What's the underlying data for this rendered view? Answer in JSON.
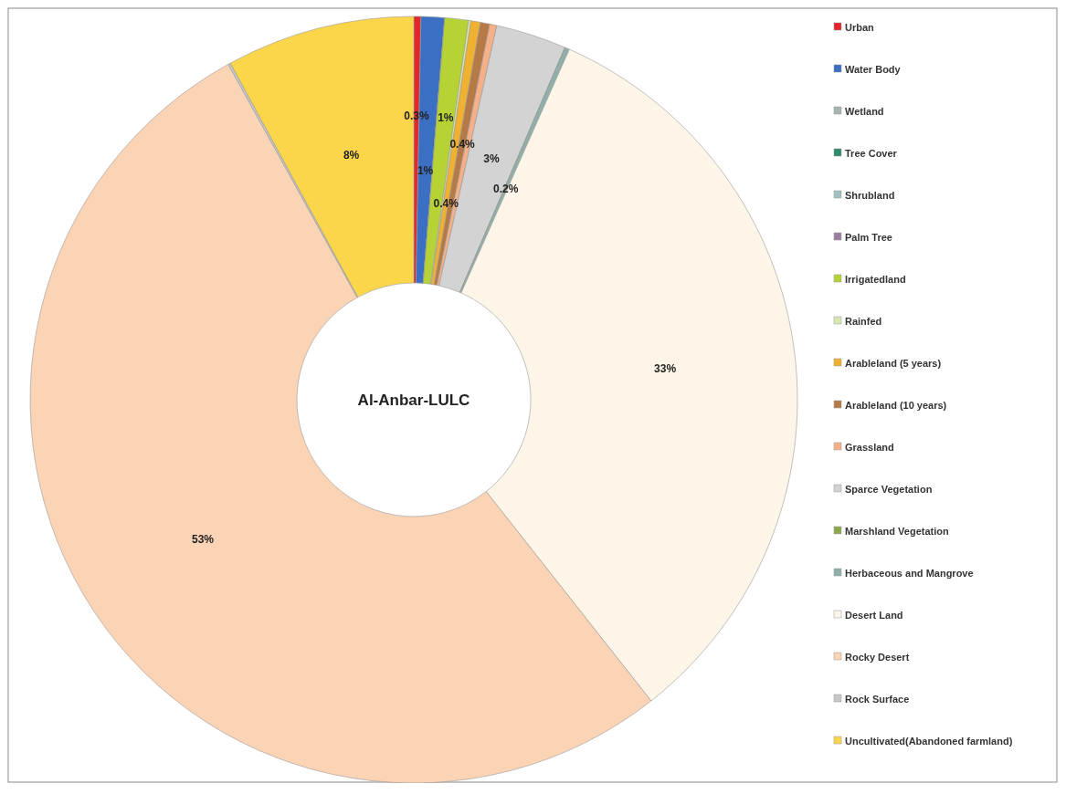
{
  "chart_data": {
    "type": "donut",
    "title": "Al-Anbar-LULC",
    "categories": [
      "Urban",
      "Water Body",
      "Wetland",
      "Tree Cover",
      "Shrubland",
      "Palm Tree",
      "Irrigatedland",
      "Rainfed",
      "Arableland (5 years)",
      "Arableland (10 years)",
      "Grassland",
      "Sparce Vegetation",
      "Marshland Vegetation",
      "Herbaceous and Mangrove",
      "Desert Land",
      "Rocky Desert",
      "Rock Surface",
      "Uncultivated(Abandoned farmland)"
    ],
    "values": [
      0.3,
      1,
      0,
      0,
      0,
      0,
      1,
      0.1,
      0.4,
      0.4,
      0.3,
      3,
      0,
      0.2,
      33,
      53,
      0.1,
      8
    ],
    "value_labels": [
      "0.3%",
      "1%",
      null,
      null,
      null,
      null,
      "1%",
      null,
      "0.4%",
      "0.4%",
      null,
      "3%",
      null,
      "0.2%",
      "33%",
      "53%",
      null,
      "8%"
    ],
    "colors": [
      "#e3262a",
      "#3a6fc4",
      "#a5b5b0",
      "#2e8b6e",
      "#9fc1c1",
      "#9b7fa0",
      "#b5d334",
      "#d8e8b0",
      "#f0b030",
      "#b57a45",
      "#f5b087",
      "#d3d3d3",
      "#8aaa4a",
      "#8fb0aa",
      "#fdf5e8",
      "#fbd3b5",
      "#c8c8c8",
      "#fcd64a"
    ],
    "legend": "right"
  }
}
